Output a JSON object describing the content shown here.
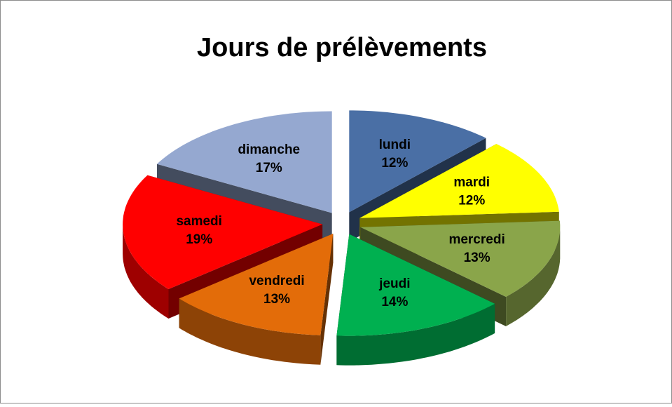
{
  "chart_data": {
    "type": "pie",
    "title": "Jours de prélèvements",
    "categories": [
      "lundi",
      "mardi",
      "mercredi",
      "jeudi",
      "vendredi",
      "samedi",
      "dimanche"
    ],
    "values": [
      12,
      12,
      13,
      14,
      13,
      19,
      17
    ],
    "value_labels": [
      "12%",
      "12%",
      "13%",
      "14%",
      "13%",
      "19%",
      "17%"
    ],
    "colors": [
      "#4a6fa5",
      "#ffff00",
      "#8aa54a",
      "#00b050",
      "#e36c09",
      "#ff0000",
      "#95a8d0"
    ]
  }
}
